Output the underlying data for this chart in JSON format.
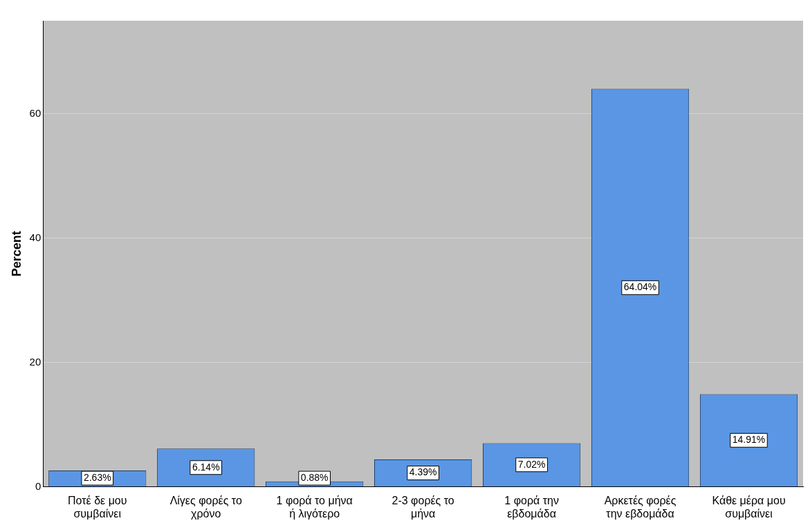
{
  "chart_data": {
    "type": "bar",
    "ylabel": "Percent",
    "categories": [
      "Ποτέ δε μου συμβαίνει",
      "Λίγες φορές το χρόνο",
      "1 φορά το μήνα ή λιγότερο",
      "2-3 φορές το μήνα",
      "1 φορά την εβδομάδα",
      "Αρκετές φορές την εβδομάδα",
      "Κάθε μέρα μου συμβαίνει"
    ],
    "values": [
      2.63,
      6.14,
      0.88,
      4.39,
      7.02,
      64.04,
      14.91
    ],
    "value_labels": [
      "2.63%",
      "6.14%",
      "0.88%",
      "4.39%",
      "7.02%",
      "64.04%",
      "14.91%"
    ],
    "color": "#5a96e3",
    "ylim": [
      0,
      75
    ],
    "yticks": [
      0,
      20,
      40,
      60
    ],
    "grid": "y"
  }
}
